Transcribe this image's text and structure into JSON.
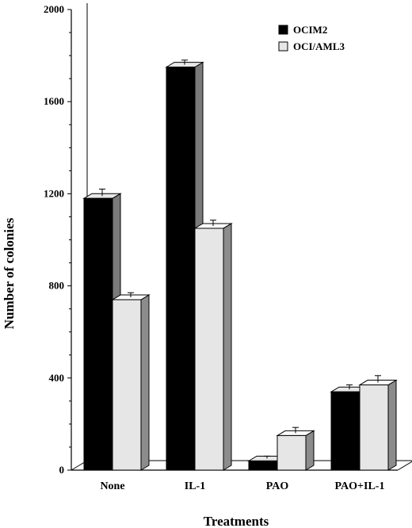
{
  "chart_data": {
    "type": "bar",
    "style": "3d-clustered",
    "title": "",
    "xlabel": "Treatments",
    "ylabel": "Number of colonies",
    "ylim": [
      0,
      2000
    ],
    "yticks": [
      "0",
      "400",
      "800",
      "1200",
      "1600",
      "2000"
    ],
    "grid": false,
    "legend_position": "top-right",
    "categories": [
      "None",
      "IL-1",
      "PAO",
      "PAO+IL-1"
    ],
    "series": [
      {
        "name": "OCIM2",
        "color": "#000000",
        "values": [
          1180,
          1750,
          40,
          340
        ],
        "errors": [
          30,
          20,
          10,
          20
        ]
      },
      {
        "name": "OCI/AML3",
        "color": "#e6e6e6",
        "values": [
          740,
          1050,
          150,
          370
        ],
        "errors": [
          20,
          25,
          25,
          30
        ]
      }
    ]
  }
}
